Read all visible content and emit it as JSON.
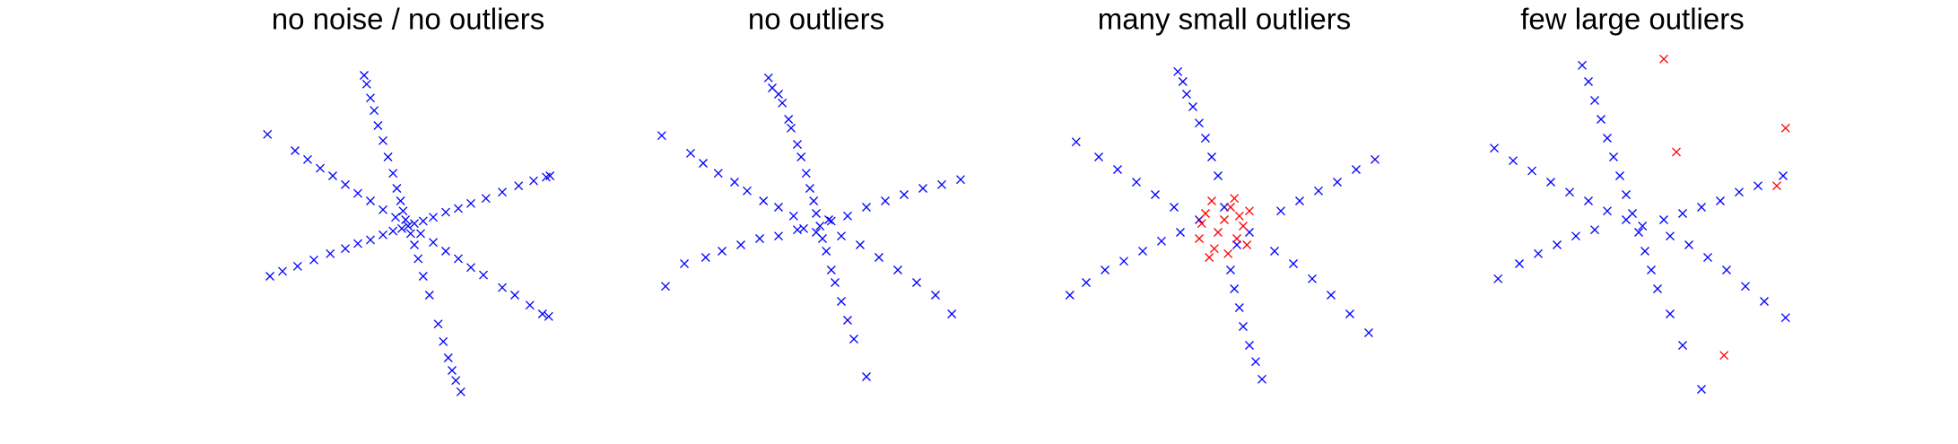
{
  "chart_data": [
    {
      "type": "scatter",
      "title": "no noise / no outliers",
      "xlim": [
        -130,
        130
      ],
      "ylim": [
        -135,
        135
      ],
      "series": [
        {
          "color": "#0000ff",
          "x": [
            -35,
            -33,
            -30,
            -27,
            -24,
            -20,
            -16,
            -12,
            -9,
            -6,
            -4,
            -2,
            0,
            2,
            5,
            8,
            12,
            17,
            24,
            28,
            32,
            35,
            38,
            42,
            -110,
            -100,
            -88,
            -75,
            -62,
            -50,
            -40,
            -30,
            -20,
            -12,
            -5,
            5,
            12,
            20,
            30,
            40,
            50,
            62,
            75,
            88,
            100,
            110,
            113,
            -90,
            -80,
            -70,
            -60,
            -50,
            -40,
            -30,
            -20,
            -10,
            10,
            20,
            30,
            40,
            50,
            60,
            75,
            85,
            97,
            107,
            112,
            -112
          ],
          "values": [
            120,
            113,
            102,
            92,
            80,
            68,
            55,
            42,
            30,
            20,
            12,
            5,
            0,
            -6,
            -15,
            -26,
            -40,
            -55,
            -78,
            -92,
            -105,
            -115,
            -123,
            -132,
            -40,
            -36,
            -32,
            -27,
            -22,
            -18,
            -14,
            -11,
            -7,
            -4,
            -2,
            2,
            4,
            7,
            11,
            14,
            18,
            22,
            27,
            32,
            36,
            39,
            40,
            60,
            53,
            46,
            40,
            33,
            26,
            20,
            13,
            7,
            -6,
            -13,
            -20,
            -26,
            -33,
            -39,
            -49,
            -55,
            -63,
            -70,
            -72,
            73
          ]
        }
      ]
    },
    {
      "type": "scatter",
      "title": "no outliers",
      "xlim": [
        -130,
        130
      ],
      "ylim": [
        -135,
        135
      ],
      "series": [
        {
          "color": "#0000ff",
          "x": [
            -38,
            -35,
            -30,
            -27,
            -22,
            -20,
            -15,
            -12,
            -8,
            -5,
            -2,
            0,
            3,
            5,
            8,
            12,
            15,
            20,
            25,
            30,
            40,
            -123,
            -100,
            -90,
            -78,
            -65,
            -55,
            -42,
            -30,
            -18,
            -120,
            -105,
            -88,
            -75,
            -60,
            -45,
            -30,
            -15,
            115,
            100,
            85,
            70,
            55,
            40,
            25,
            12,
            108,
            95,
            80,
            65,
            50,
            35,
            20,
            -10,
            10,
            0
          ],
          "values": [
            118,
            110,
            105,
            98,
            85,
            78,
            65,
            55,
            42,
            30,
            20,
            10,
            0,
            -10,
            -20,
            -35,
            -45,
            -60,
            -75,
            -90,
            -120,
            72,
            58,
            50,
            42,
            35,
            28,
            20,
            15,
            8,
            -48,
            -30,
            -25,
            -20,
            -15,
            -10,
            -8,
            -3,
            37,
            33,
            30,
            25,
            20,
            15,
            8,
            4,
            -70,
            -55,
            -45,
            -35,
            -25,
            -15,
            -8,
            -2,
            5,
            -5
          ]
        }
      ]
    },
    {
      "type": "scatter",
      "title": "many small outliers",
      "xlim": [
        -130,
        130
      ],
      "ylim": [
        -135,
        135
      ],
      "series": [
        {
          "color": "#0000ff",
          "x": [
            -37,
            -33,
            -30,
            -25,
            -20,
            -15,
            -10,
            -5,
            30,
            25,
            20,
            15,
            12,
            8,
            5,
            -123,
            -110,
            -95,
            -80,
            -65,
            -50,
            -35,
            -118,
            -100,
            -85,
            -70,
            -55,
            -40,
            120,
            105,
            90,
            75,
            60,
            45,
            115,
            100,
            85,
            70,
            55,
            40,
            -20,
            20,
            0,
            10
          ],
          "values": [
            123,
            115,
            105,
            95,
            82,
            70,
            55,
            40,
            -122,
            -108,
            -95,
            -80,
            -65,
            -50,
            -35,
            -55,
            -45,
            -35,
            -28,
            -20,
            -12,
            -5,
            67,
            55,
            45,
            35,
            25,
            15,
            53,
            45,
            35,
            28,
            20,
            12,
            -85,
            -70,
            -55,
            -42,
            -30,
            -20,
            5,
            -5,
            15,
            -15
          ]
        },
        {
          "color": "#ff0000",
          "x": [
            -15,
            -10,
            -5,
            0,
            5,
            10,
            15,
            -20,
            -8,
            8,
            20,
            -12,
            3,
            18,
            -18,
            12
          ],
          "values": [
            10,
            20,
            -5,
            5,
            15,
            -10,
            0,
            -10,
            -18,
            22,
            12,
            -25,
            -22,
            -15,
            2,
            8
          ]
        }
      ]
    },
    {
      "type": "scatter",
      "title": "few large outliers",
      "xlim": [
        -130,
        130
      ],
      "ylim": [
        -135,
        135
      ],
      "series": [
        {
          "color": "#0000ff",
          "x": [
            -40,
            -35,
            -30,
            -25,
            -20,
            -15,
            -10,
            -5,
            0,
            5,
            10,
            15,
            20,
            30,
            40,
            55,
            -110,
            -95,
            -80,
            -65,
            -50,
            -35,
            -20,
            -107,
            -90,
            -75,
            -60,
            -45,
            -30,
            122,
            105,
            90,
            75,
            60,
            45,
            30,
            120,
            100,
            85,
            70,
            55,
            40,
            25,
            -5,
            8
          ],
          "values": [
            128,
            115,
            100,
            85,
            70,
            55,
            40,
            25,
            10,
            -5,
            -20,
            -35,
            -50,
            -70,
            -95,
            -130,
            62,
            52,
            44,
            35,
            27,
            20,
            12,
            -42,
            -30,
            -22,
            -15,
            -8,
            -3,
            -73,
            -60,
            -48,
            -35,
            -25,
            -15,
            -8,
            40,
            32,
            27,
            20,
            15,
            10,
            5,
            5,
            0
          ]
        },
        {
          "color": "#ff0000",
          "x": [
            25,
            122,
            35,
            115,
            73
          ],
          "values": [
            133,
            78,
            59,
            32,
            -103
          ]
        }
      ]
    }
  ]
}
